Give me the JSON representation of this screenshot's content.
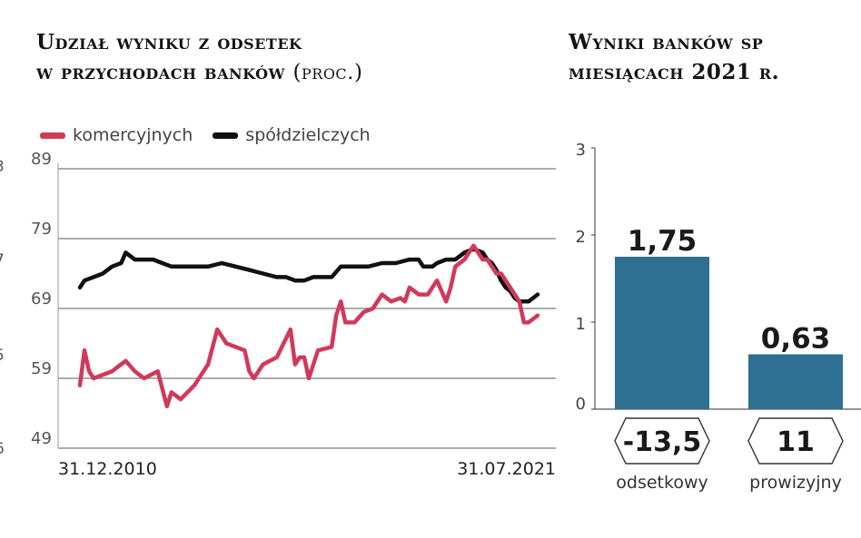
{
  "left_title": {
    "line1": "Udział wyniku z odsetek",
    "line2": "w przychodach banków",
    "unit": "(proc.)"
  },
  "right_title": {
    "line1": "Wyniki banków sp",
    "line2": "miesiącach 2021 r."
  },
  "left_axis_cut_labels": [
    "3",
    "7",
    "5",
    "6"
  ],
  "legend": [
    {
      "label": "komercyjnych",
      "color": "#d03a5a"
    },
    {
      "label": "spółdzielczych",
      "color": "#111111"
    }
  ],
  "chart_data": [
    {
      "type": "line",
      "ylim": [
        49,
        89
      ],
      "yticks": [
        "89",
        "79",
        "69",
        "59",
        "49"
      ],
      "x_start_label": "31.12.2010",
      "x_end_label": "31.07.2021",
      "grid": true,
      "legend_placement": "top-left",
      "series": [
        {
          "name": "komercyjnych",
          "color": "#d03a5a",
          "x": [
            0,
            0.01,
            0.02,
            0.03,
            0.05,
            0.07,
            0.09,
            0.1,
            0.12,
            0.14,
            0.17,
            0.19,
            0.2,
            0.22,
            0.25,
            0.28,
            0.3,
            0.32,
            0.34,
            0.36,
            0.37,
            0.38,
            0.39,
            0.4,
            0.43,
            0.46,
            0.47,
            0.48,
            0.49,
            0.5,
            0.52,
            0.55,
            0.56,
            0.57,
            0.58,
            0.6,
            0.62,
            0.64,
            0.66,
            0.68,
            0.7,
            0.71,
            0.72,
            0.74,
            0.76,
            0.78,
            0.8,
            0.81,
            0.82,
            0.84,
            0.86,
            0.88,
            0.89,
            0.9,
            0.91,
            0.92,
            0.93,
            0.94,
            0.95,
            0.96,
            0.97,
            0.98,
            0.99,
            1.0
          ],
          "values": [
            58,
            63,
            60,
            59,
            59.5,
            60,
            61,
            61.5,
            60,
            59,
            60,
            55,
            57,
            56,
            58,
            61,
            66,
            64,
            63.5,
            63,
            60,
            59,
            60,
            61,
            62,
            66,
            61,
            62,
            62,
            59,
            63,
            63.5,
            68,
            70,
            67,
            67,
            68.5,
            69,
            71,
            70,
            70.5,
            70,
            72,
            71,
            71,
            73,
            70,
            72,
            75,
            76,
            78,
            76,
            76,
            75,
            74,
            74,
            73,
            72,
            71,
            70,
            67,
            67,
            67.5,
            68
          ]
        },
        {
          "name": "spółdzielczych",
          "color": "#111111",
          "x": [
            0,
            0.01,
            0.03,
            0.05,
            0.07,
            0.09,
            0.1,
            0.12,
            0.14,
            0.16,
            0.18,
            0.2,
            0.22,
            0.25,
            0.28,
            0.31,
            0.34,
            0.37,
            0.4,
            0.43,
            0.45,
            0.47,
            0.49,
            0.51,
            0.53,
            0.55,
            0.57,
            0.6,
            0.63,
            0.66,
            0.69,
            0.72,
            0.74,
            0.75,
            0.77,
            0.78,
            0.8,
            0.82,
            0.84,
            0.86,
            0.88,
            0.89,
            0.9,
            0.91,
            0.92,
            0.93,
            0.94,
            0.95,
            0.96,
            0.97,
            0.98,
            0.99,
            1.0
          ],
          "values": [
            72,
            73,
            73.5,
            74,
            75,
            75.5,
            77,
            76,
            76,
            76,
            75.5,
            75,
            75,
            75,
            75,
            75.5,
            75,
            74.5,
            74,
            73.5,
            73.5,
            73,
            73,
            73.5,
            73.5,
            73.5,
            75,
            75,
            75,
            75.5,
            75.5,
            76,
            76,
            75,
            75,
            75.5,
            76,
            76,
            77,
            77.5,
            77,
            76,
            75.5,
            74.5,
            73,
            72,
            71.5,
            70.5,
            70,
            70,
            70,
            70.5,
            71
          ]
        }
      ]
    },
    {
      "type": "bar",
      "ylim": [
        0,
        3
      ],
      "yticks": [
        "3",
        "2",
        "1",
        "0"
      ],
      "categories": [
        "odsetkowy",
        "prowizyjny"
      ],
      "value_labels": [
        "1,75",
        "0,63"
      ],
      "values": [
        1.75,
        0.63
      ],
      "bar_color": "#2f6f91",
      "change_labels": [
        "-13,5",
        "11"
      ],
      "grid": false
    }
  ]
}
